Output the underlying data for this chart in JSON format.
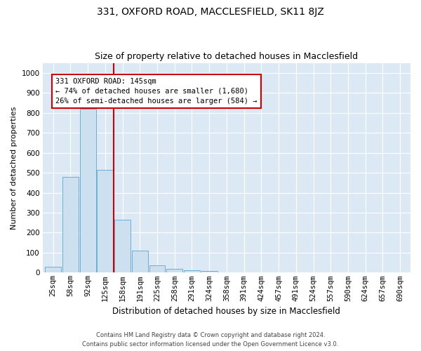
{
  "title": "331, OXFORD ROAD, MACCLESFIELD, SK11 8JZ",
  "subtitle": "Size of property relative to detached houses in Macclesfield",
  "xlabel": "Distribution of detached houses by size in Macclesfield",
  "ylabel": "Number of detached properties",
  "footer_line1": "Contains HM Land Registry data © Crown copyright and database right 2024.",
  "footer_line2": "Contains public sector information licensed under the Open Government Licence v3.0.",
  "categories": [
    "25sqm",
    "58sqm",
    "92sqm",
    "125sqm",
    "158sqm",
    "191sqm",
    "225sqm",
    "258sqm",
    "291sqm",
    "324sqm",
    "358sqm",
    "391sqm",
    "424sqm",
    "457sqm",
    "491sqm",
    "524sqm",
    "557sqm",
    "590sqm",
    "624sqm",
    "657sqm",
    "690sqm"
  ],
  "values": [
    28,
    480,
    820,
    515,
    265,
    110,
    38,
    18,
    12,
    8,
    0,
    0,
    0,
    0,
    0,
    0,
    0,
    0,
    0,
    0,
    0
  ],
  "bar_color": "#cce0f0",
  "bar_edge_color": "#6aaed6",
  "vline_x": 3.5,
  "vline_color": "#cc0000",
  "annotation_text": "331 OXFORD ROAD: 145sqm\n← 74% of detached houses are smaller (1,680)\n26% of semi-detached houses are larger (584) →",
  "annotation_box_color": "#cc0000",
  "ylim": [
    0,
    1050
  ],
  "yticks": [
    0,
    100,
    200,
    300,
    400,
    500,
    600,
    700,
    800,
    900,
    1000
  ],
  "fig_background": "#ffffff",
  "axes_background": "#dce9f5",
  "grid_color": "#ffffff",
  "title_fontsize": 10,
  "subtitle_fontsize": 9,
  "ylabel_fontsize": 8,
  "xlabel_fontsize": 8.5,
  "tick_fontsize": 7.5,
  "footer_fontsize": 6,
  "ann_fontsize": 7.5
}
